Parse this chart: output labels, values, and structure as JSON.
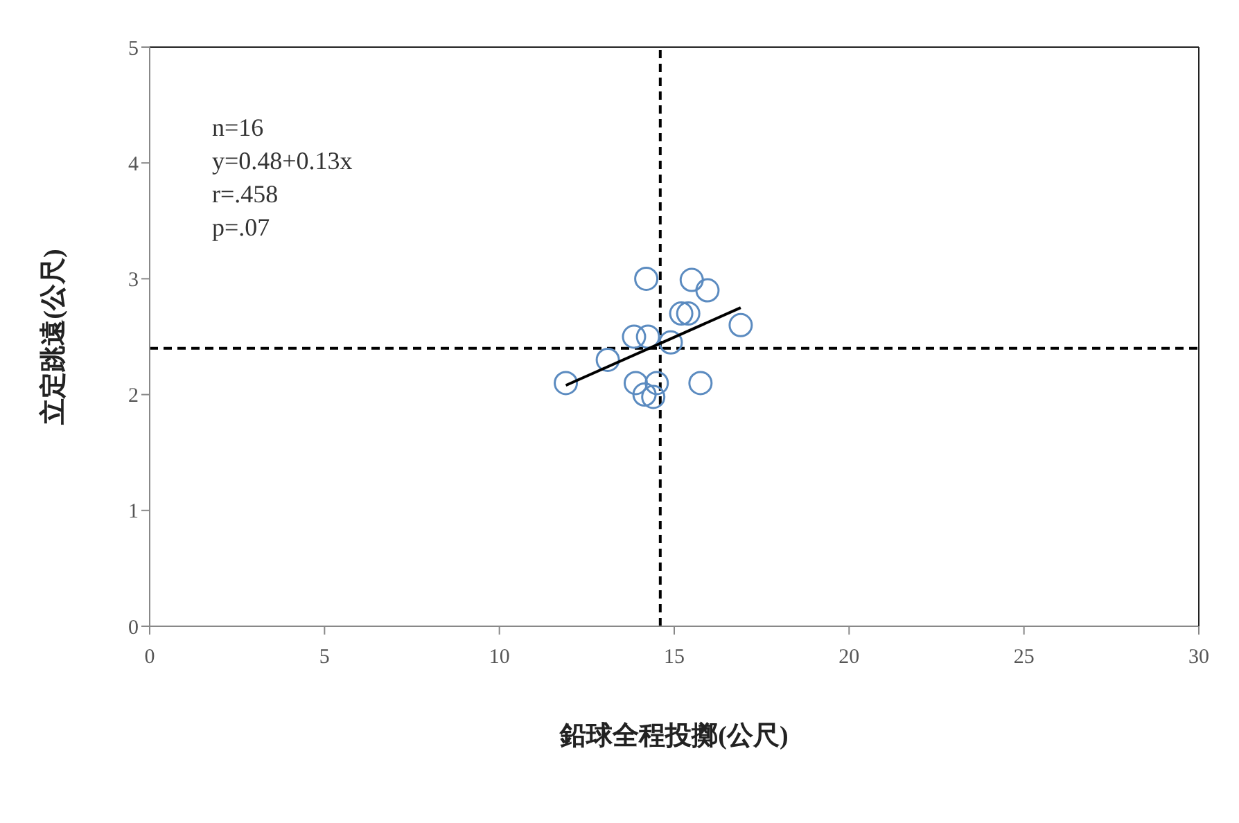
{
  "chart_data": {
    "type": "scatter",
    "xlabel": "鉛球全程投擲(公尺)",
    "ylabel": "立定跳遠(公尺)",
    "annotations": [
      "n=16",
      "y=0.48+0.13x",
      "r=.458",
      "p=.07"
    ],
    "series": [
      {
        "color": "#5b8bc0",
        "marker": "circle",
        "x": [
          11.9,
          13.1,
          13.85,
          14.2,
          15.5,
          15.95,
          15.2,
          15.4,
          16.9,
          14.9,
          14.25,
          13.9,
          14.5,
          15.75,
          14.15,
          14.4
        ],
        "values": [
          2.1,
          2.3,
          2.5,
          3.0,
          2.99,
          2.9,
          2.7,
          2.7,
          2.6,
          2.45,
          2.5,
          2.1,
          2.1,
          2.1,
          2.0,
          1.98
        ]
      },
      {
        "type": "line",
        "color": "#000000",
        "marker": "none",
        "x": [
          11.9,
          16.9
        ],
        "values": [
          2.08,
          2.75
        ]
      }
    ],
    "ref_lines": [
      {
        "axis": "x",
        "value": 14.6,
        "color": "#000000",
        "line_style": "dashed"
      },
      {
        "axis": "y",
        "value": 2.4,
        "color": "#000000",
        "line_style": "dashed"
      }
    ],
    "xlim": [
      0,
      30
    ],
    "xticks": [
      0,
      5,
      10,
      15,
      20,
      25,
      30
    ],
    "ylim": [
      0,
      5
    ],
    "yticks": [
      0,
      1,
      2,
      3,
      4,
      5
    ],
    "grid": false
  }
}
